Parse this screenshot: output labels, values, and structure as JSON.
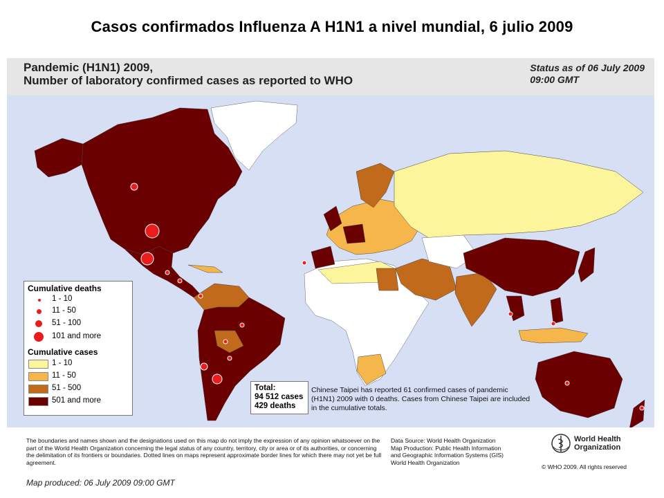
{
  "slide_title": "Casos confirmados Influenza A H1N1 a nivel mundial, 6 julio 2009",
  "map_title_line1": "Pandemic (H1N1) 2009,",
  "map_title_line2": "Number of  laboratory confirmed cases as reported to WHO",
  "status_line1": "Status as of 06 July 2009",
  "status_line2": "09:00 GMT",
  "legend": {
    "deaths_title": "Cumulative deaths",
    "deaths": [
      "1 - 10",
      "11 - 50",
      "51 - 100",
      "101 and more"
    ],
    "cases_title": "Cumulative cases",
    "cases": [
      {
        "label": "1 - 10",
        "color": "#fdf59c"
      },
      {
        "label": "11 - 50",
        "color": "#f5b64c"
      },
      {
        "label": "51 - 500",
        "color": "#c26a1c"
      },
      {
        "label": "501 and more",
        "color": "#6b0000"
      }
    ]
  },
  "total": {
    "label": "Total:",
    "cases": "94 512 cases",
    "deaths": "429 deaths"
  },
  "taipei_note": "Chinese Taipei has reported 61 confirmed cases of pandemic (H1N1) 2009 with 0 deaths. Cases from Chinese Taipei are included in the cumulative totals.",
  "disclaimer": "The boundaries and names shown and the designations used on this map do not imply the expression of any opinion whatsoever on the part of the World Health Organization concerning the legal status of any country, territory, city or area or of its authorities, or concerning the delimitation of its frontiers or boundaries.  Dotted lines on maps represent approximate border lines for which there may not yet be full agreement.",
  "source": {
    "line1": "Data Source: World Health Organization",
    "line2": "Map Production: Public Health Information",
    "line3": "and Geographic Information Systems (GIS)",
    "line4": "World Health Organization"
  },
  "who": {
    "line1": "World Health",
    "line2": "Organization",
    "copyright": "© WHO 2009. All rights reserved"
  },
  "produced": "Map produced: 06 July 2009 09:00 GMT",
  "colors": {
    "ocean": "#d7dff5",
    "no_cases": "#ffffff",
    "c1_10": "#fdf59c",
    "c11_50": "#f5b64c",
    "c51_500": "#c26a1c",
    "c501_plus": "#6b0000",
    "death_dot": "#ea1c1c"
  }
}
